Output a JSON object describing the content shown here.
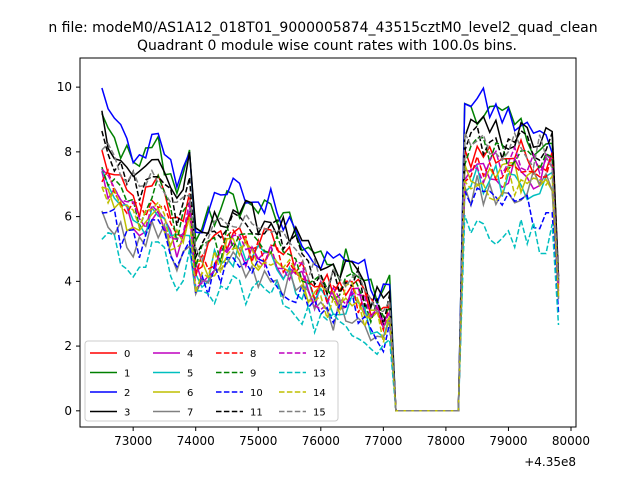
{
  "chart_data": {
    "type": "line",
    "suptitle": "n file: modeM0/AS1A12_018T01_9000005874_43515cztM0_level2_quad_clean",
    "title": "Quadrant 0 module wise count rates with 100.0s bins.",
    "xlabel": "",
    "ylabel": "",
    "offset_label": "+4.35e8",
    "xlim": [
      72150,
      80080
    ],
    "ylim": [
      -0.5,
      10.9
    ],
    "x_ticks": [
      73000,
      74000,
      75000,
      76000,
      77000,
      78000,
      79000,
      80000
    ],
    "y_ticks": [
      0,
      2,
      4,
      6,
      8,
      10
    ],
    "legend": {
      "placement": "lower-left",
      "columns": 4
    },
    "shape": {
      "x_start": 72500,
      "gap_start": 77200,
      "gap_end": 78200,
      "x_end": 79800,
      "step": 100
    },
    "series": [
      {
        "name": "0",
        "color": "#ff0000",
        "dash": "solid",
        "levels": [
          7.9,
          6.7,
          6.1,
          5.7,
          5.2,
          4.0,
          3.2,
          0.0,
          8.0,
          7.8
        ]
      },
      {
        "name": "1",
        "color": "#008000",
        "dash": "solid",
        "levels": [
          9.4,
          9.0,
          7.7,
          7.2,
          6.7,
          5.6,
          4.2,
          0.0,
          9.7,
          8.0
        ]
      },
      {
        "name": "2",
        "color": "#0000ff",
        "dash": "solid",
        "levels": [
          9.8,
          8.4,
          7.4,
          6.9,
          6.2,
          5.0,
          3.9,
          0.0,
          9.9,
          8.1
        ]
      },
      {
        "name": "3",
        "color": "#000000",
        "dash": "solid",
        "levels": [
          9.0,
          7.6,
          6.8,
          6.6,
          5.8,
          4.8,
          3.7,
          0.0,
          8.7,
          8.3
        ]
      },
      {
        "name": "4",
        "color": "#bf00bf",
        "dash": "solid",
        "levels": [
          7.2,
          6.6,
          5.9,
          5.5,
          5.0,
          3.9,
          3.0,
          0.0,
          7.4,
          7.4
        ]
      },
      {
        "name": "5",
        "color": "#00bfbf",
        "dash": "solid",
        "levels": [
          7.0,
          6.1,
          5.2,
          5.0,
          4.7,
          3.6,
          2.9,
          0.0,
          7.2,
          7.0
        ]
      },
      {
        "name": "6",
        "color": "#bfbf00",
        "dash": "solid",
        "levels": [
          7.2,
          6.2,
          5.4,
          5.2,
          4.8,
          3.6,
          2.9,
          0.0,
          7.1,
          7.2
        ]
      },
      {
        "name": "7",
        "color": "#808080",
        "dash": "solid",
        "levels": [
          6.4,
          5.8,
          5.1,
          4.8,
          4.6,
          3.4,
          2.8,
          0.0,
          6.9,
          6.9
        ]
      },
      {
        "name": "8",
        "color": "#ff0000",
        "dash": "dashed",
        "levels": [
          7.5,
          6.8,
          6.0,
          5.7,
          5.2,
          4.0,
          3.3,
          0.0,
          7.4,
          7.5
        ]
      },
      {
        "name": "9",
        "color": "#008000",
        "dash": "dashed",
        "levels": [
          7.7,
          6.7,
          5.9,
          5.6,
          5.1,
          3.9,
          3.2,
          0.0,
          8.0,
          7.9
        ]
      },
      {
        "name": "10",
        "color": "#0000ff",
        "dash": "dashed",
        "levels": [
          6.4,
          5.5,
          4.9,
          4.6,
          4.3,
          3.3,
          2.7,
          0.0,
          6.5,
          6.1
        ]
      },
      {
        "name": "11",
        "color": "#000000",
        "dash": "dashed",
        "levels": [
          8.6,
          7.3,
          6.5,
          6.1,
          5.6,
          4.6,
          3.6,
          0.0,
          8.4,
          8.2
        ]
      },
      {
        "name": "12",
        "color": "#bf00bf",
        "dash": "dashed",
        "levels": [
          7.4,
          6.4,
          5.8,
          5.4,
          5.0,
          3.9,
          3.1,
          0.0,
          7.5,
          7.7
        ]
      },
      {
        "name": "13",
        "color": "#00bfbf",
        "dash": "dashed",
        "levels": [
          5.6,
          4.7,
          4.1,
          3.9,
          3.6,
          2.9,
          2.2,
          0.0,
          5.8,
          5.3
        ]
      },
      {
        "name": "14",
        "color": "#bfbf00",
        "dash": "dashed",
        "levels": [
          7.0,
          6.2,
          5.5,
          5.2,
          4.8,
          3.7,
          2.9,
          0.0,
          7.0,
          7.0
        ]
      },
      {
        "name": "15",
        "color": "#808080",
        "dash": "dashed",
        "levels": [
          8.5,
          7.1,
          6.3,
          6.0,
          5.5,
          4.4,
          3.4,
          0.0,
          8.3,
          8.0
        ]
      }
    ]
  }
}
